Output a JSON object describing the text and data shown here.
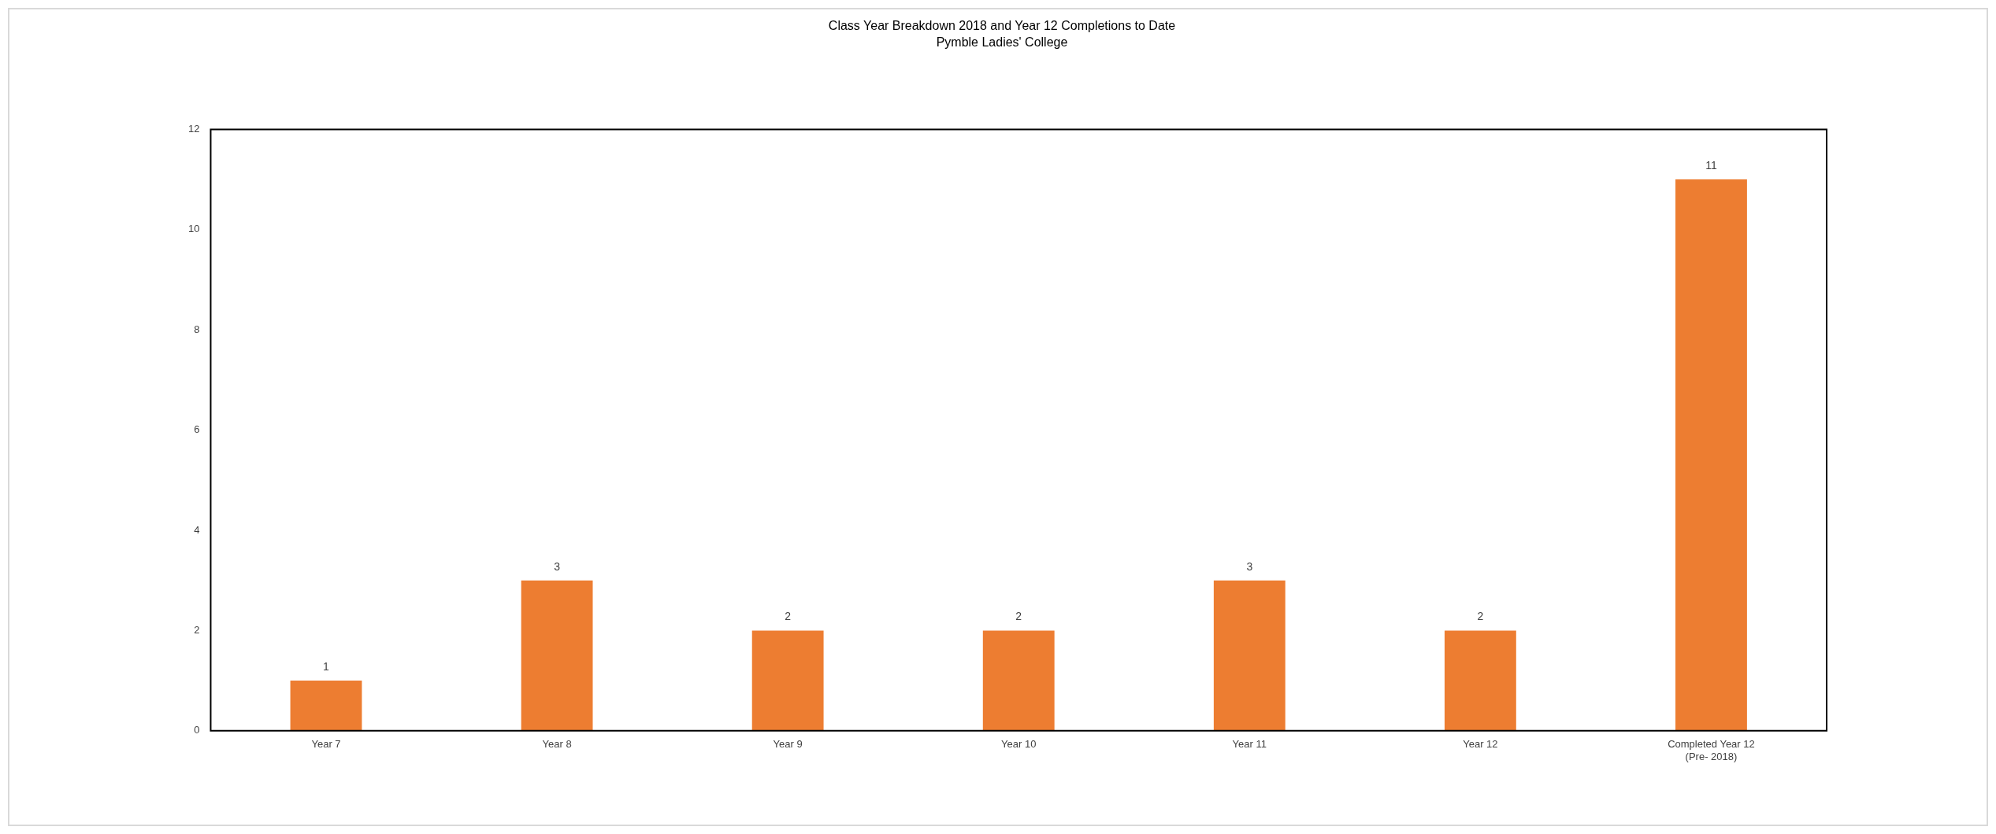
{
  "chart_data": {
    "type": "bar",
    "title": "Class Year Breakdown 2018 and Year 12 Completions to Date",
    "subtitle": "Pymble Ladies' College",
    "categories": [
      "Year 7",
      "Year 8",
      "Year 9",
      "Year 10",
      "Year 11",
      "Year 12",
      "Completed Year 12\n(Pre- 2018)"
    ],
    "values": [
      1,
      3,
      2,
      2,
      3,
      2,
      11
    ],
    "color": "#ed7d31",
    "ylim": [
      0,
      12
    ],
    "yticks": [
      0,
      2,
      4,
      6,
      8,
      10,
      12
    ],
    "grid": false,
    "legend": false,
    "data_labels": true
  }
}
